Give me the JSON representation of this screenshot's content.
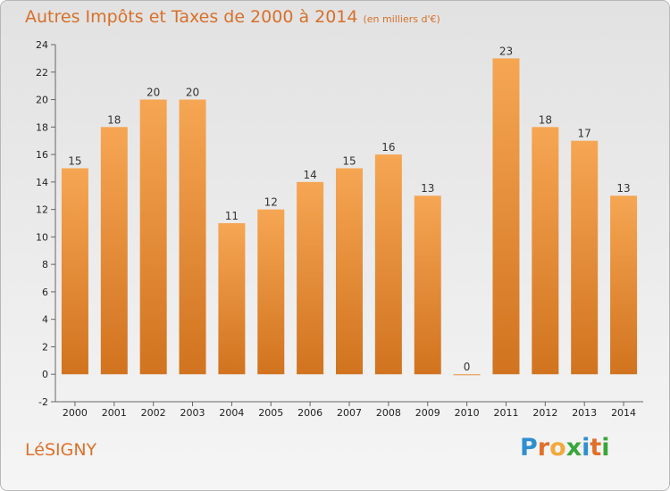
{
  "header": {
    "title": "Autres Impôts et Taxes de 2000 à 2014",
    "unit": "(en milliers d'€)"
  },
  "footer": {
    "town": "LéSIGNY",
    "brand": "Proxiti",
    "brand_letters": [
      {
        "char": "P",
        "color": "#2f8fd0"
      },
      {
        "char": "r",
        "color": "#e0702a"
      },
      {
        "char": "o",
        "color": "#f2a93b"
      },
      {
        "char": "x",
        "color": "#3aa63a"
      },
      {
        "char": "i",
        "color": "#2f8fd0"
      },
      {
        "char": "t",
        "color": "#e0702a"
      },
      {
        "char": "i",
        "color": "#3aa63a"
      }
    ]
  },
  "colors": {
    "bar_light": "#f6a653",
    "bar_dark": "#d1731f",
    "accent": "#d7702a"
  },
  "chart_data": {
    "type": "bar",
    "categories": [
      "2000",
      "2001",
      "2002",
      "2003",
      "2004",
      "2005",
      "2006",
      "2007",
      "2008",
      "2009",
      "2010",
      "2011",
      "2012",
      "2013",
      "2014"
    ],
    "values": [
      15,
      18,
      20,
      20,
      11,
      12,
      14,
      15,
      16,
      13,
      0,
      23,
      18,
      17,
      13
    ],
    "title": "Autres Impôts et Taxes de 2000 à 2014",
    "xlabel": "",
    "ylabel": "",
    "ylim": [
      -2,
      24
    ],
    "yticks": [
      -2,
      0,
      2,
      4,
      6,
      8,
      10,
      12,
      14,
      16,
      18,
      20,
      22,
      24
    ],
    "grid": false,
    "legend": "none"
  }
}
